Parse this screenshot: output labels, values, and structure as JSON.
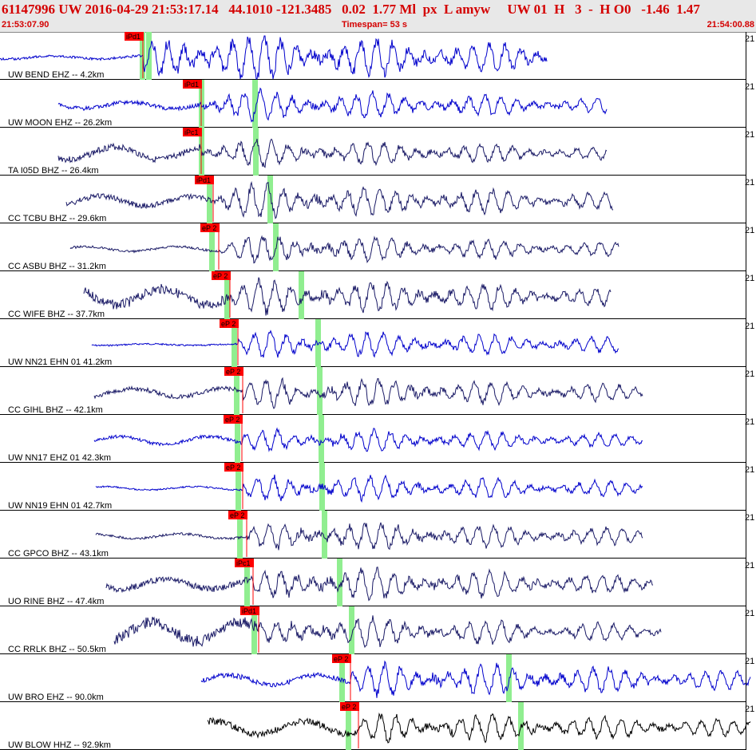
{
  "header": {
    "title": "61147996 UW 2016-04-29 21:53:17.14   44.1010 -121.3485   0.02  1.77 Ml  px  L amyw     UW 01  H   3  -  H O0   -1.46  1.47",
    "start_time": "21:53:07.90",
    "timespan": "Timespan=  53 s",
    "end_time": "21:54:00.88"
  },
  "colors": {
    "header_text": "#d40000",
    "trace_blue": "#0000cc",
    "trace_navy": "#1a1a66",
    "trace_black": "#000000",
    "pick_box": "#ff0000",
    "marker_green": "#90ee90"
  },
  "scale_label": "21",
  "traces": [
    {
      "label": "UW BEND EHZ -- 4.2km",
      "pick": "iPd1",
      "color": "blue",
      "start": 0,
      "end": 685,
      "phase": 180,
      "green": [
        178,
        186
      ],
      "amp": [
        2,
        3,
        30
      ],
      "seed": 1
    },
    {
      "label": "UW MOON EHZ -- 26.2km",
      "pick": "iPd1",
      "color": "blue",
      "start": 73,
      "end": 760,
      "phase": 253,
      "green": [
        252,
        319
      ],
      "amp": [
        4,
        5,
        18
      ],
      "seed": 2
    },
    {
      "label": "TA I05D BHZ -- 26.4km",
      "pick": "iPc1",
      "color": "navy",
      "start": 73,
      "end": 760,
      "phase": 253,
      "green": [
        252,
        320
      ],
      "amp": [
        8,
        8,
        16
      ],
      "seed": 3
    },
    {
      "label": "CC TCBU BHZ -- 29.6km",
      "pick": "iPd1",
      "color": "navy",
      "start": 83,
      "end": 768,
      "phase": 268,
      "green": [
        262,
        338
      ],
      "amp": [
        6,
        7,
        20
      ],
      "seed": 4
    },
    {
      "label": "CC ASBU BHZ -- 31.2km",
      "pick": "eP 2",
      "color": "navy",
      "start": 88,
      "end": 775,
      "phase": 275,
      "green": [
        265,
        345
      ],
      "amp": [
        3,
        3,
        16
      ],
      "seed": 5
    },
    {
      "label": "CC WIFE BHZ -- 37.7km",
      "pick": "eP 2",
      "color": "navy",
      "start": 105,
      "end": 765,
      "phase": 289,
      "green": [
        284,
        377
      ],
      "amp": [
        10,
        12,
        20
      ],
      "seed": 6
    },
    {
      "label": "UW NN21 EHN 01 41.2km",
      "pick": "eP 2",
      "color": "blue",
      "start": 115,
      "end": 775,
      "phase": 299,
      "green": [
        293,
        398
      ],
      "amp": [
        1,
        2,
        16
      ],
      "seed": 7
    },
    {
      "label": "CC GIHL BHZ -- 42.1km",
      "pick": "eP 2",
      "color": "navy",
      "start": 118,
      "end": 805,
      "phase": 305,
      "green": [
        296,
        400
      ],
      "amp": [
        5,
        6,
        18
      ],
      "seed": 8
    },
    {
      "label": "UW NN17 EHZ 01 42.3km",
      "pick": "eP 2",
      "color": "blue",
      "start": 118,
      "end": 805,
      "phase": 304,
      "green": [
        297,
        402
      ],
      "amp": [
        5,
        4,
        14
      ],
      "seed": 9
    },
    {
      "label": "UW NN19 EHN 01 42.7km",
      "pick": "eP 2",
      "color": "blue",
      "start": 120,
      "end": 805,
      "phase": 305,
      "green": [
        298,
        403
      ],
      "amp": [
        2,
        2,
        16
      ],
      "seed": 10
    },
    {
      "label": "CC GPCO BHZ -- 43.1km",
      "pick": "eP 2",
      "color": "navy",
      "start": 120,
      "end": 805,
      "phase": 310,
      "green": [
        300,
        406
      ],
      "amp": [
        3,
        3,
        18
      ],
      "seed": 11
    },
    {
      "label": "UO RINE BHZ -- 47.4km",
      "pick": "iPc1",
      "color": "navy",
      "start": 133,
      "end": 818,
      "phase": 318,
      "green": [
        309,
        425
      ],
      "amp": [
        6,
        8,
        20
      ],
      "seed": 12
    },
    {
      "label": "CC RRLK BHZ -- 50.5km",
      "pick": "iPd1",
      "color": "navy",
      "start": 143,
      "end": 828,
      "phase": 325,
      "green": [
        318,
        440
      ],
      "amp": [
        12,
        14,
        18
      ],
      "seed": 13
    },
    {
      "label": "UW BRO EHZ -- 90.0km",
      "pick": "eP 2",
      "color": "blue",
      "start": 252,
      "end": 940,
      "phase": 440,
      "green": [
        428,
        637
      ],
      "amp": [
        6,
        6,
        20
      ],
      "seed": 14
    },
    {
      "label": "UW BLOW HHZ -- 92.9km",
      "pick": "eP 2",
      "color": "black",
      "start": 260,
      "end": 940,
      "phase": 450,
      "green": [
        436,
        652
      ],
      "amp": [
        8,
        8,
        18
      ],
      "seed": 15
    }
  ]
}
